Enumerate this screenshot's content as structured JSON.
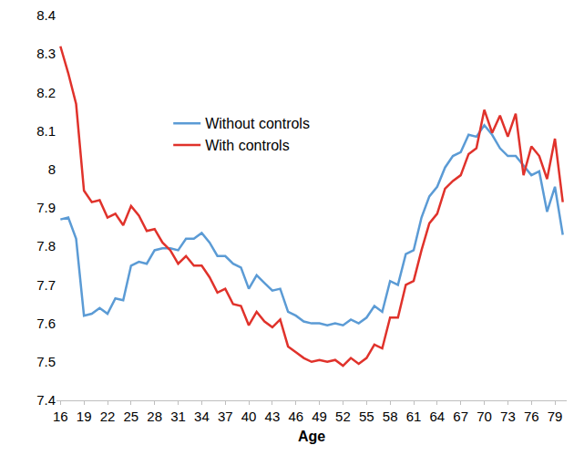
{
  "chart_data": {
    "type": "line",
    "x_label": "Age",
    "x": [
      16,
      17,
      18,
      19,
      20,
      21,
      22,
      23,
      24,
      25,
      26,
      27,
      28,
      29,
      30,
      31,
      32,
      33,
      34,
      35,
      36,
      37,
      38,
      39,
      40,
      41,
      42,
      43,
      44,
      45,
      46,
      47,
      48,
      49,
      50,
      51,
      52,
      53,
      54,
      55,
      56,
      57,
      58,
      59,
      60,
      61,
      62,
      63,
      64,
      65,
      66,
      67,
      68,
      69,
      70,
      71,
      72,
      73,
      74,
      75,
      76,
      77,
      78,
      79,
      80
    ],
    "series": [
      {
        "name": "Without controls",
        "color": "#5b9bd5",
        "values": [
          7.87,
          7.875,
          7.82,
          7.62,
          7.625,
          7.64,
          7.625,
          7.665,
          7.66,
          7.75,
          7.76,
          7.755,
          7.79,
          7.795,
          7.795,
          7.79,
          7.82,
          7.82,
          7.835,
          7.81,
          7.775,
          7.775,
          7.755,
          7.745,
          7.69,
          7.725,
          7.705,
          7.685,
          7.69,
          7.63,
          7.62,
          7.605,
          7.6,
          7.6,
          7.595,
          7.6,
          7.595,
          7.61,
          7.6,
          7.615,
          7.645,
          7.63,
          7.71,
          7.7,
          7.78,
          7.79,
          7.875,
          7.93,
          7.955,
          8.005,
          8.035,
          8.045,
          8.09,
          8.085,
          8.115,
          8.09,
          8.055,
          8.035,
          8.035,
          8.01,
          7.985,
          7.995,
          7.89,
          7.955,
          7.83
        ]
      },
      {
        "name": "With controls",
        "color": "#e0322b",
        "values": [
          8.32,
          8.25,
          8.17,
          7.945,
          7.915,
          7.92,
          7.875,
          7.885,
          7.855,
          7.905,
          7.88,
          7.84,
          7.845,
          7.81,
          7.79,
          7.755,
          7.775,
          7.75,
          7.75,
          7.72,
          7.68,
          7.69,
          7.65,
          7.645,
          7.595,
          7.63,
          7.605,
          7.59,
          7.61,
          7.54,
          7.525,
          7.51,
          7.5,
          7.505,
          7.5,
          7.505,
          7.49,
          7.51,
          7.495,
          7.51,
          7.545,
          7.535,
          7.615,
          7.615,
          7.7,
          7.71,
          7.79,
          7.86,
          7.885,
          7.95,
          7.97,
          7.985,
          8.04,
          8.055,
          8.155,
          8.095,
          8.14,
          8.085,
          8.145,
          7.985,
          8.06,
          8.035,
          7.975,
          8.08,
          7.915
        ]
      }
    ],
    "xlim": [
      15.5,
      80.5
    ],
    "xticks": [
      16,
      19,
      22,
      25,
      28,
      31,
      34,
      37,
      40,
      43,
      46,
      49,
      52,
      55,
      58,
      61,
      64,
      67,
      70,
      73,
      76,
      79
    ],
    "ylim": [
      7.4,
      8.4
    ],
    "yticks": [
      7.4,
      7.5,
      7.6,
      7.7,
      7.8,
      7.9,
      8,
      8.1,
      8.2,
      8.3,
      8.4
    ],
    "grid": false,
    "legend": "upper left"
  }
}
